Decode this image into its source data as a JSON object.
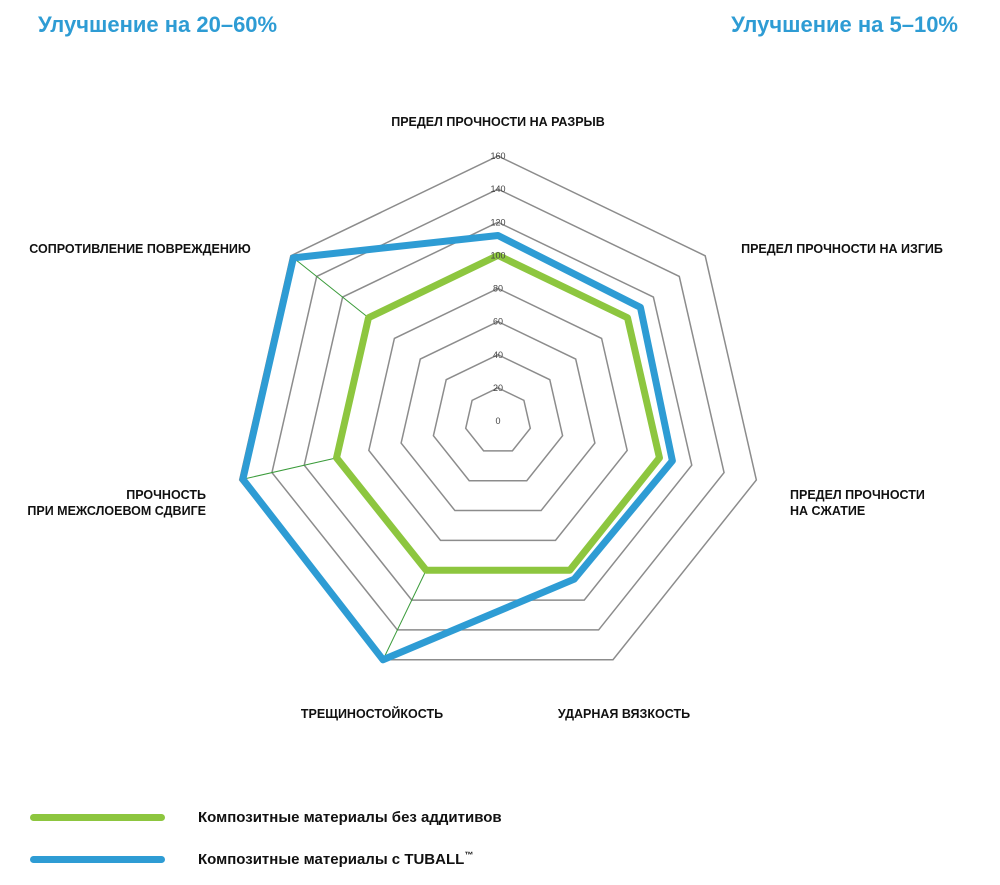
{
  "headlines": {
    "left": "Улучшение на 20–60%",
    "right": "Улучшение на 5–10%"
  },
  "chart_data": {
    "type": "radar",
    "axes": [
      "ПРЕДЕЛ ПРОЧНОСТИ НА РАЗРЫВ",
      "ПРЕДЕЛ ПРОЧНОСТИ НА ИЗГИБ",
      "ПРЕДЕЛ ПРОЧНОСТИ НА СЖАТИЕ",
      "УДАРНАЯ ВЯЗКОСТЬ",
      "ТРЕЩИНОСТОЙКОСТЬ",
      "ПРОЧНОСТЬ ПРИ МЕЖСЛОЕВОМ СДВИГЕ",
      "СОПРОТИВЛЕНИЕ ПОВРЕЖДЕНИЮ"
    ],
    "axis_label_lines": [
      [
        "ПРЕДЕЛ ПРОЧНОСТИ НА РАЗРЫВ"
      ],
      [
        "ПРЕДЕЛ ПРОЧНОСТИ НА ИЗГИБ"
      ],
      [
        "ПРЕДЕЛ ПРОЧНОСТИ",
        "НА СЖАТИЕ"
      ],
      [
        "УДАРНАЯ ВЯЗКОСТЬ"
      ],
      [
        "ТРЕЩИНОСТОЙКОСТЬ"
      ],
      [
        "ПРОЧНОСТЬ",
        "ПРИ МЕЖСЛОЕВОМ СДВИГЕ"
      ],
      [
        "СОПРОТИВЛЕНИЕ ПОВРЕЖДЕНИЮ"
      ]
    ],
    "ticks": [
      0,
      20,
      40,
      60,
      80,
      100,
      120,
      140,
      160
    ],
    "range": [
      0,
      160
    ],
    "series": [
      {
        "name": "Композитные материалы без аддитивов",
        "color": "#8dc63f",
        "values": [
          100,
          100,
          100,
          100,
          100,
          100,
          100
        ]
      },
      {
        "name": "Композитные материалы с TUBALL™",
        "color": "#2e9cd4",
        "values": [
          112,
          110,
          108,
          106,
          160,
          158,
          158
        ]
      }
    ],
    "grid": true,
    "legend": "bottom-left"
  },
  "legend": {
    "items": [
      {
        "label": "Композитные материалы без аддитивов",
        "color": "#8dc63f"
      },
      {
        "label": "Композитные материалы с TUBALL",
        "mark": "™",
        "color": "#2e9cd4"
      }
    ]
  }
}
